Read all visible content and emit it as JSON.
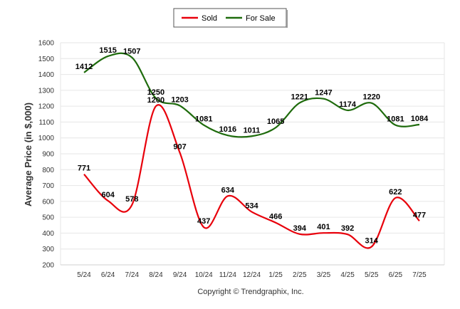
{
  "chart_data": {
    "type": "line",
    "categories": [
      "5/24",
      "6/24",
      "7/24",
      "8/24",
      "9/24",
      "10/24",
      "11/24",
      "12/24",
      "1/25",
      "2/25",
      "3/25",
      "4/25",
      "5/25",
      "6/25",
      "7/25"
    ],
    "series": [
      {
        "name": "Sold",
        "color": "#e8000b",
        "values": [
          771,
          604,
          578,
          1200,
          907,
          437,
          634,
          534,
          466,
          394,
          401,
          392,
          314,
          622,
          477
        ]
      },
      {
        "name": "For Sale",
        "color": "#1e6b0c",
        "values": [
          1412,
          1515,
          1507,
          1250,
          1203,
          1081,
          1016,
          1011,
          1065,
          1221,
          1247,
          1174,
          1220,
          1081,
          1084
        ]
      }
    ],
    "ylabel": "Average Price (in $,000)",
    "xlabel": "",
    "ylim": [
      200,
      1600
    ],
    "yticks": [
      200,
      300,
      400,
      500,
      600,
      700,
      800,
      900,
      1000,
      1100,
      1200,
      1300,
      1400,
      1500,
      1600
    ],
    "grid": true,
    "legend_position": "top-center"
  },
  "footer": {
    "copyright": "Copyright © Trendgraphix, Inc."
  }
}
